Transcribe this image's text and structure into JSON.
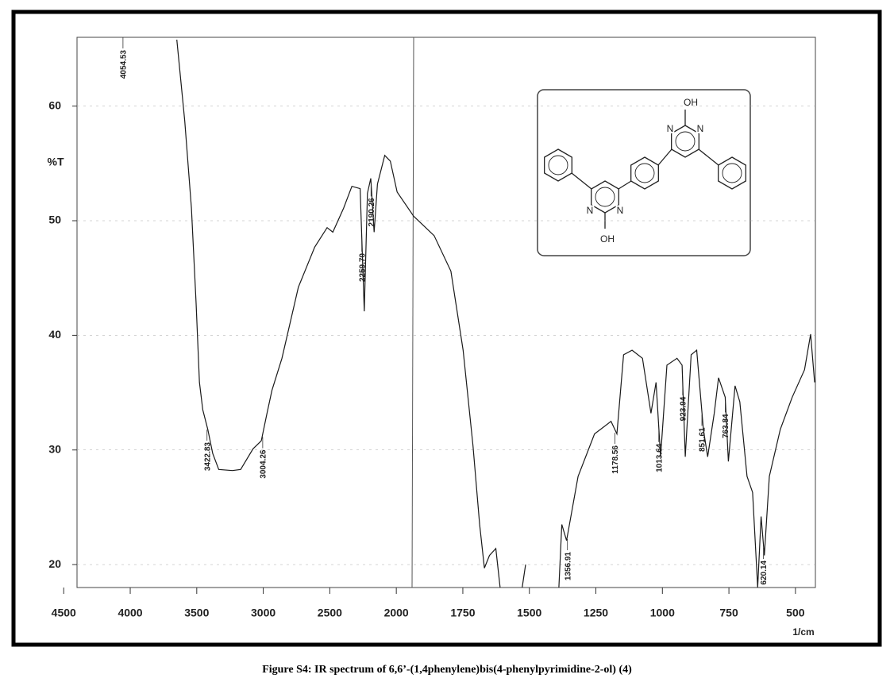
{
  "chart_data": {
    "type": "line",
    "y_label": "%T",
    "x_label": "1/cm",
    "xlim": [
      4600,
      425
    ],
    "xticks": [
      4500,
      4000,
      3500,
      3000,
      2500,
      2000,
      1750,
      1500,
      1250,
      1000,
      750,
      500
    ],
    "ylim": [
      18,
      66
    ],
    "yticks": [
      20,
      30,
      40,
      50,
      60
    ],
    "series": [
      {
        "color": "#1a1a1a",
        "x": [
          3650,
          3590,
          3540,
          3505,
          3480,
          3455,
          3417,
          3380,
          3335,
          3232,
          3170,
          3077,
          3015,
          2972,
          2935,
          2860,
          2736,
          2613,
          2520,
          2477,
          2396,
          2334,
          2272,
          2241,
          2217,
          2192,
          2167,
          2142,
          2087,
          2045,
          1997,
          1935,
          1858,
          1795,
          1749,
          1712,
          1687,
          1669,
          1650,
          1626,
          1610,
          null,
          1527,
          1514,
          null,
          1389,
          1378,
          1360,
          1317,
          1255,
          1193,
          1171,
          1146,
          1114,
          1075,
          1043,
          1024,
          1007,
          983,
          945,
          926,
          914,
          892,
          871,
          846,
          830,
          805,
          789,
          764,
          752,
          727,
          709,
          682,
          661,
          642,
          629,
          617,
          598,
          557,
          512,
          466,
          443,
          428
        ],
        "values": [
          65.8,
          58.7,
          51.1,
          42.8,
          35.9,
          33.5,
          31.8,
          29.7,
          28.3,
          28.2,
          28.3,
          30.1,
          30.8,
          33.2,
          35.2,
          38.0,
          44.2,
          47.7,
          49.4,
          49.0,
          51.1,
          53.0,
          52.8,
          42.1,
          52.4,
          53.7,
          49.0,
          53.2,
          55.7,
          55.2,
          52.5,
          50.4,
          48.7,
          45.6,
          38.7,
          30.4,
          23.5,
          19.7,
          20.8,
          21.4,
          18,
          null,
          18,
          20,
          null,
          18,
          23.5,
          22.1,
          27.7,
          31.4,
          32.5,
          31.4,
          38.3,
          38.7,
          38.0,
          33.2,
          35.9,
          29.4,
          37.4,
          38.0,
          37.4,
          29.4,
          38.3,
          38.7,
          31.8,
          29.4,
          33.2,
          36.3,
          34.6,
          29.0,
          35.6,
          34.2,
          27.7,
          26.3,
          18,
          24.2,
          20.8,
          27.7,
          31.8,
          34.6,
          37.0,
          40.1,
          35.9
        ]
      }
    ],
    "peaks": [
      4054.53,
      3422.83,
      3004.26,
      2259.7,
      2190.26,
      1356.91,
      1178.56,
      1013.64,
      923.94,
      851.61,
      763.84,
      620.14
    ],
    "peak_labels": [
      "4054.53",
      "3422.83",
      "3004.26",
      "2259.70",
      "2190.26",
      "1356.91",
      "1178.56",
      "1013.64",
      "923.94",
      "851.61",
      "763.84",
      "620.14"
    ]
  },
  "structure": {
    "labels": [
      "OH",
      "N",
      "N",
      "N",
      "N",
      "OH"
    ]
  },
  "caption": "Figure S4: IR spectrum of 6,6’-(1,4phenylene)bis(4-phenylpyrimidine-2-ol) (4)"
}
